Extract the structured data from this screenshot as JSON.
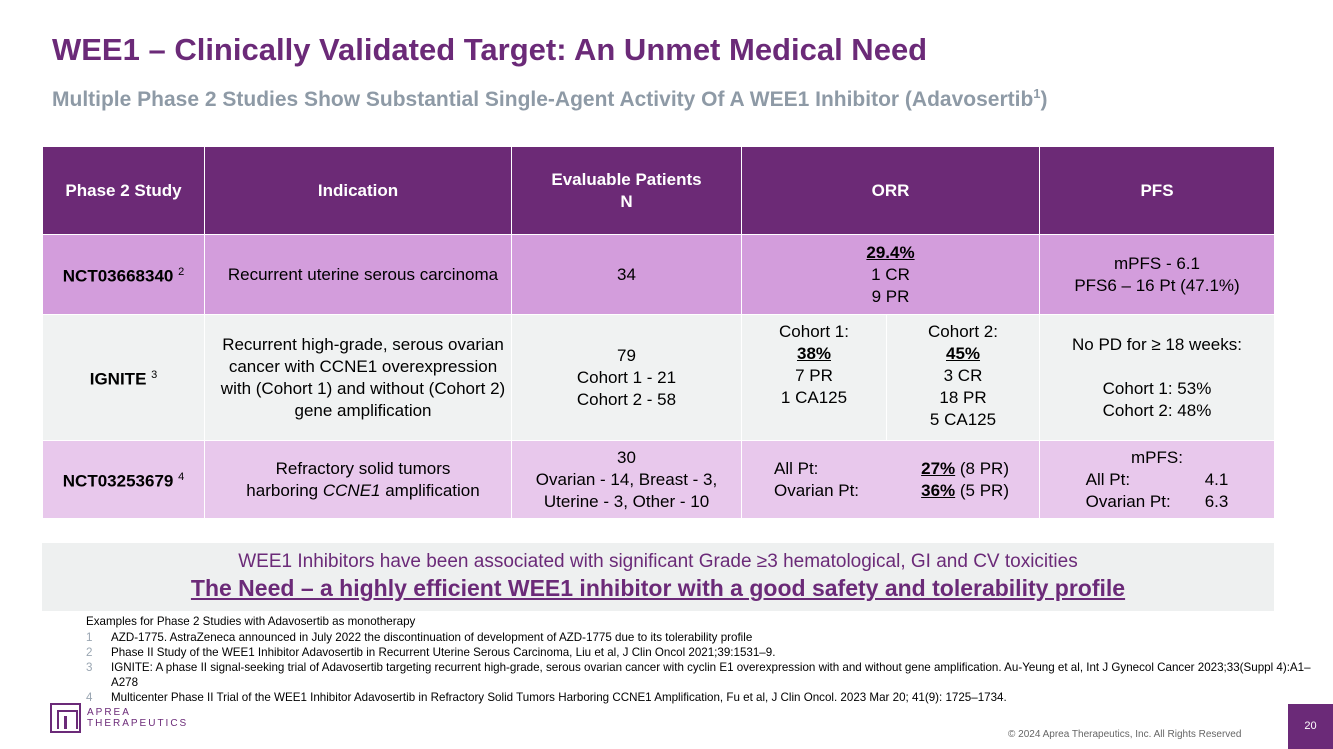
{
  "header": {
    "title": "WEE1 – Clinically Validated Target: An Unmet Medical Need",
    "subtitle": "Multiple Phase 2 Studies Show Substantial Single-Agent Activity Of A WEE1 Inhibitor (Adavosertib",
    "subtitle_sup": "1",
    "subtitle_end": ")"
  },
  "table": {
    "headers": {
      "study": "Phase 2 Study",
      "indication": "Indication",
      "patients_l1": "Evaluable Patients",
      "patients_l2": "N",
      "orr": "ORR",
      "pfs": "PFS"
    },
    "row1": {
      "study": "NCT03668340",
      "ref": "2",
      "indication": "Recurrent uterine serous carcinoma",
      "patients": "34",
      "orr_main": "29.4%",
      "orr_l2": "1 CR",
      "orr_l3": "9 PR",
      "pfs_l1": "mPFS - 6.1",
      "pfs_l2": "PFS6 – 16 Pt (47.1%)"
    },
    "row2": {
      "study": "IGNITE",
      "ref": "3",
      "indication": "Recurrent high-grade, serous ovarian cancer with CCNE1 overexpression with (Cohort 1) and without (Cohort 2) gene amplification",
      "patients_l1": "79",
      "patients_l2": "Cohort 1 - 21",
      "patients_l3": "Cohort 2 - 58",
      "c1_label": "Cohort 1:",
      "c1_main": "38%",
      "c1_l2": "7 PR",
      "c1_l3": "1 CA125",
      "c2_label": "Cohort 2:",
      "c2_main": "45%",
      "c2_l2": "3 CR",
      "c2_l3": "18 PR",
      "c2_l4": "5 CA125",
      "pfs_l1": "No PD for ≥ 18 weeks:",
      "pfs_l2": "Cohort 1: 53%",
      "pfs_l3": "Cohort 2: 48%"
    },
    "row3": {
      "study": "NCT03253679",
      "ref": "4",
      "indication_l1": "Refractory solid tumors",
      "indication_l2a": "harboring ",
      "indication_l2b": "CCNE1",
      "indication_l2c": " amplification",
      "patients_l1": "30",
      "patients_l2": "Ovarian - 14, Breast - 3,",
      "patients_l3": "Uterine - 3, Other - 10",
      "orr_all_label": "All Pt:",
      "orr_all_val": "27%",
      "orr_all_rest": " (8 PR)",
      "orr_ov_label": "Ovarian Pt:",
      "orr_ov_val": "36%",
      "orr_ov_rest": " (5 PR)",
      "pfs_title": "mPFS:",
      "pfs_all_label": "All Pt:",
      "pfs_all_val": "4.1",
      "pfs_ov_label": "Ovarian Pt:",
      "pfs_ov_val": "6.3"
    }
  },
  "banner": {
    "line1": "WEE1 Inhibitors have been associated with significant Grade ≥3 hematological, GI and CV toxicities",
    "line2": "The Need – a highly efficient WEE1 inhibitor with a good safety and tolerability profile"
  },
  "references": {
    "heading": "Examples for Phase 2 Studies with Adavosertib as monotherapy",
    "items": [
      {
        "n": "1",
        "text": "AZD-1775. AstraZeneca announced in July 2022 the discontinuation of development of AZD-1775 due to its tolerability profile"
      },
      {
        "n": "2",
        "text": " Phase II Study of the WEE1 Inhibitor Adavosertib in Recurrent Uterine Serous Carcinoma, Liu et al, J Clin Oncol 2021;39:1531–9."
      },
      {
        "n": "3",
        "text": "IGNITE: A phase II signal-seeking trial of Adavosertib targeting recurrent high-grade, serous ovarian cancer with cyclin E1 overexpression with and without gene amplification. Au-Yeung et al, Int J Gynecol Cancer 2023;33(Suppl 4):A1–A278"
      },
      {
        "n": "4",
        "text": "Multicenter Phase II Trial of the WEE1 Inhibitor Adavosertib in Refractory Solid Tumors Harboring CCNE1 Amplification, Fu et al, J Clin Oncol. 2023 Mar 20; 41(9): 1725–1734."
      }
    ]
  },
  "footer": {
    "logo_l1": "APREA",
    "logo_l2": "THERAPEUTICS",
    "copyright": "© 2024 Aprea Therapeutics, Inc. All Rights Reserved",
    "page": "20"
  }
}
